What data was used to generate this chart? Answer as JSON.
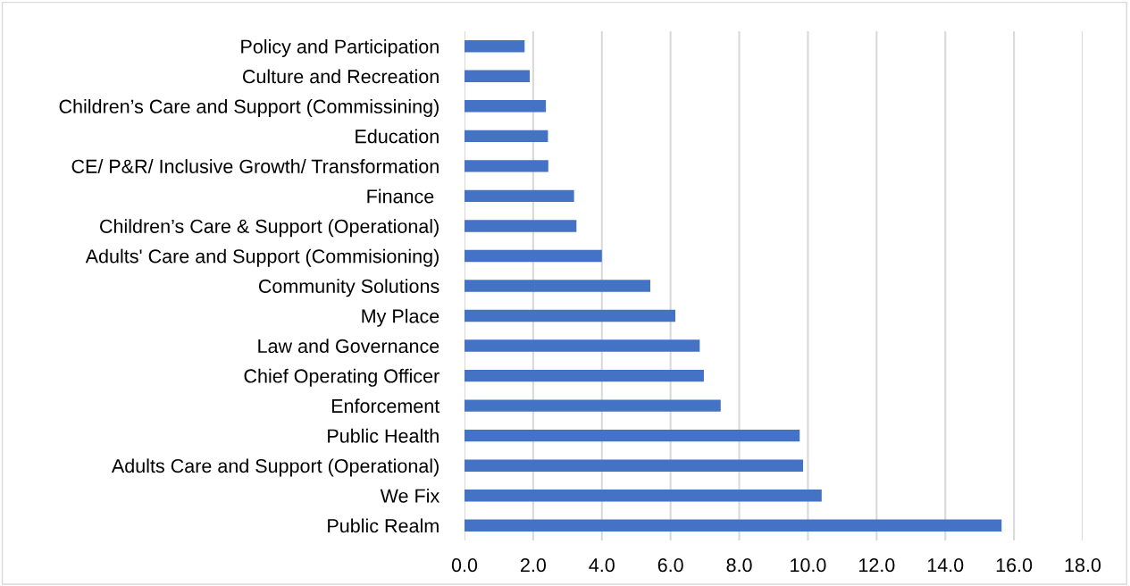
{
  "chart_data": {
    "type": "bar",
    "orientation": "horizontal",
    "categories": [
      "Policy and Participation",
      "Culture and Recreation",
      "Children’s Care and Support (Commissining)",
      "Education",
      "CE/ P&R/ Inclusive Growth/ Transformation",
      "Finance ",
      "Children’s Care & Support (Operational)",
      "Adults' Care and Support (Commisioning)",
      "Community Solutions",
      "My Place",
      "Law and Governance",
      "Chief Operating Officer",
      "Enforcement",
      "Public Health",
      "Adults Care and Support (Operational)",
      "We Fix",
      "Public Realm"
    ],
    "values": [
      1.75,
      1.9,
      2.37,
      2.43,
      2.44,
      3.19,
      3.26,
      4.0,
      5.41,
      6.14,
      6.85,
      6.97,
      7.46,
      9.76,
      9.86,
      10.4,
      15.64
    ],
    "color": "#4472c4",
    "xlim": [
      0,
      18
    ],
    "xticks": [
      {
        "value": 0,
        "label": "0.0"
      },
      {
        "value": 2,
        "label": "2.0"
      },
      {
        "value": 4,
        "label": "4.0"
      },
      {
        "value": 6,
        "label": "6.0"
      },
      {
        "value": 8,
        "label": "8.0"
      },
      {
        "value": 10,
        "label": "10.0"
      },
      {
        "value": 12,
        "label": "12.0"
      },
      {
        "value": 14,
        "label": "14.0"
      },
      {
        "value": 16,
        "label": "16.0"
      },
      {
        "value": 18,
        "label": "18.0"
      }
    ],
    "grid": "x"
  }
}
